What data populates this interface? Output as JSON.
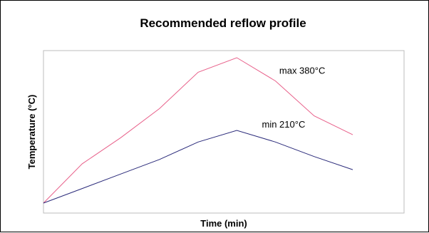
{
  "chart_data": {
    "type": "line",
    "title": "Recommended reflow profile",
    "xlabel": "Time (min)",
    "ylabel": "Temperature (°C)",
    "grid": false,
    "series": [
      {
        "color": "#e8608a",
        "x": [
          0,
          1,
          2,
          3,
          4,
          5,
          6,
          7,
          8
        ],
        "y": [
          0,
          0.27,
          0.45,
          0.65,
          0.9,
          1.0,
          0.84,
          0.6,
          0.47
        ]
      },
      {
        "color": "#2a2a7a",
        "x": [
          0,
          1,
          2,
          3,
          4,
          5,
          6,
          7,
          8
        ],
        "y": [
          0,
          0.1,
          0.2,
          0.3,
          0.42,
          0.5,
          0.42,
          0.32,
          0.23
        ]
      }
    ],
    "annotations": [
      {
        "text": "max 380°C",
        "series": 0,
        "x": 6.1,
        "y": 0.87
      },
      {
        "text": "min 210°C",
        "series": 1,
        "x": 5.65,
        "y": 0.5
      }
    ]
  }
}
